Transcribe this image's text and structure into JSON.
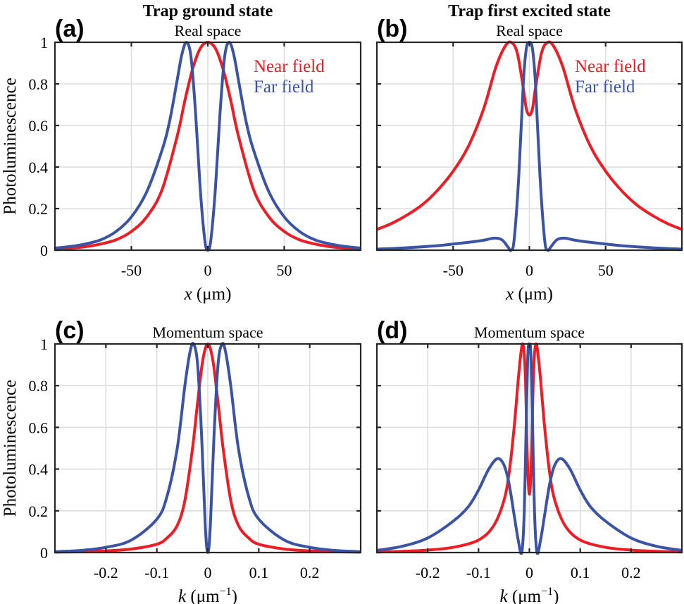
{
  "colors": {
    "near_field": "#ee1c24",
    "far_field": "#3a53a4"
  },
  "chart_data": [
    {
      "id": "a",
      "type": "line",
      "panel_label": "(a)",
      "title": "Trap ground state",
      "subtitle": "Real space",
      "xlabel_var": "x",
      "xlabel_unit": "(μm)",
      "xlabel_sup": "",
      "ylabel": "Photoluminescence",
      "xlim": [
        -100,
        100
      ],
      "ylim": [
        0,
        1
      ],
      "xticks": [
        -50,
        0,
        50
      ],
      "xtick_labels": [
        "-50",
        "0",
        "50"
      ],
      "yticks": [
        0,
        0.2,
        0.4,
        0.6,
        0.8,
        1
      ],
      "ytick_labels": [
        "0",
        "0.2",
        "0.4",
        "0.6",
        "0.8",
        "1"
      ],
      "grid": true,
      "legend": {
        "placement": "top-right",
        "entries": [
          "Near field",
          "Far field"
        ]
      },
      "series": [
        {
          "name": "Near field",
          "color_key": "near_field",
          "x": [
            -100,
            -90,
            -80,
            -70,
            -60,
            -50,
            -40,
            -30,
            -20,
            -15,
            -10,
            -5,
            0,
            5,
            10,
            15,
            20,
            30,
            40,
            50,
            60,
            70,
            80,
            90,
            100
          ],
          "y": [
            0.005,
            0.01,
            0.017,
            0.03,
            0.05,
            0.09,
            0.16,
            0.29,
            0.55,
            0.72,
            0.87,
            0.97,
            1.0,
            0.97,
            0.87,
            0.72,
            0.55,
            0.29,
            0.16,
            0.09,
            0.05,
            0.03,
            0.017,
            0.01,
            0.005
          ]
        },
        {
          "name": "Far field",
          "color_key": "far_field",
          "x": [
            -100,
            -90,
            -80,
            -70,
            -60,
            -50,
            -40,
            -30,
            -25,
            -20,
            -17,
            -14,
            -11,
            -8,
            -5,
            -2,
            0,
            2,
            5,
            8,
            11,
            14,
            17,
            20,
            25,
            30,
            40,
            50,
            60,
            70,
            80,
            90,
            100
          ],
          "y": [
            0.01,
            0.018,
            0.03,
            0.05,
            0.09,
            0.16,
            0.28,
            0.48,
            0.62,
            0.82,
            0.94,
            1.0,
            0.93,
            0.66,
            0.3,
            0.05,
            0.0,
            0.05,
            0.3,
            0.66,
            0.93,
            1.0,
            0.94,
            0.82,
            0.62,
            0.48,
            0.28,
            0.16,
            0.09,
            0.05,
            0.03,
            0.018,
            0.01
          ]
        }
      ]
    },
    {
      "id": "b",
      "type": "line",
      "panel_label": "(b)",
      "title": "Trap first excited state",
      "subtitle": "Real space",
      "xlabel_var": "x",
      "xlabel_unit": "(μm)",
      "xlabel_sup": "",
      "ylabel": "",
      "xlim": [
        -100,
        100
      ],
      "ylim": [
        0,
        1
      ],
      "xticks": [
        -50,
        0,
        50
      ],
      "xtick_labels": [
        "-50",
        "0",
        "50"
      ],
      "yticks": [
        0,
        0.2,
        0.4,
        0.6,
        0.8,
        1
      ],
      "ytick_labels": [],
      "grid": true,
      "legend": {
        "placement": "top-right",
        "entries": [
          "Near field",
          "Far field"
        ]
      },
      "series": [
        {
          "name": "Near field",
          "color_key": "near_field",
          "x": [
            -100,
            -90,
            -80,
            -70,
            -60,
            -50,
            -40,
            -30,
            -22,
            -16,
            -12,
            -8,
            -4,
            -2,
            0,
            2,
            4,
            8,
            12,
            16,
            22,
            30,
            40,
            50,
            60,
            70,
            80,
            90,
            100
          ],
          "y": [
            0.1,
            0.13,
            0.17,
            0.22,
            0.29,
            0.38,
            0.5,
            0.68,
            0.88,
            0.98,
            1.0,
            0.95,
            0.78,
            0.68,
            0.65,
            0.68,
            0.78,
            0.95,
            1.0,
            0.98,
            0.88,
            0.68,
            0.5,
            0.38,
            0.29,
            0.22,
            0.17,
            0.13,
            0.1
          ]
        },
        {
          "name": "Far field",
          "color_key": "far_field",
          "x": [
            -100,
            -80,
            -60,
            -40,
            -30,
            -23,
            -18,
            -14,
            -12,
            -10,
            -7,
            -4,
            -2,
            0,
            2,
            4,
            7,
            10,
            12,
            14,
            18,
            23,
            30,
            40,
            60,
            80,
            100
          ],
          "y": [
            0.005,
            0.012,
            0.022,
            0.038,
            0.048,
            0.058,
            0.05,
            0.015,
            0.0,
            0.05,
            0.35,
            0.8,
            0.97,
            1.0,
            0.97,
            0.8,
            0.35,
            0.05,
            0.0,
            0.015,
            0.05,
            0.058,
            0.048,
            0.038,
            0.022,
            0.012,
            0.005
          ]
        }
      ]
    },
    {
      "id": "c",
      "type": "line",
      "panel_label": "(c)",
      "title": "",
      "subtitle": "Momentum space",
      "xlabel_var": "k",
      "xlabel_unit": "(μm",
      "xlabel_sup": "−1",
      "ylabel": "Photoluminescence",
      "xlim": [
        -0.3,
        0.3
      ],
      "ylim": [
        0,
        1
      ],
      "xticks": [
        -0.2,
        -0.1,
        0,
        0.1,
        0.2
      ],
      "xtick_labels": [
        "-0.2",
        "-0.1",
        "0",
        "0.1",
        "0.2"
      ],
      "yticks": [
        0,
        0.2,
        0.4,
        0.6,
        0.8,
        1
      ],
      "ytick_labels": [
        "0",
        "0.2",
        "0.4",
        "0.6",
        "0.8",
        "1"
      ],
      "grid": true,
      "legend": null,
      "series": [
        {
          "name": "Near field",
          "color_key": "near_field",
          "x": [
            -0.3,
            -0.25,
            -0.2,
            -0.15,
            -0.1,
            -0.08,
            -0.06,
            -0.045,
            -0.03,
            -0.02,
            -0.01,
            0,
            0.01,
            0.02,
            0.03,
            0.045,
            0.06,
            0.08,
            0.1,
            0.15,
            0.2,
            0.25,
            0.3
          ],
          "y": [
            0.002,
            0.004,
            0.008,
            0.017,
            0.04,
            0.07,
            0.13,
            0.25,
            0.5,
            0.72,
            0.92,
            1.0,
            0.92,
            0.72,
            0.5,
            0.25,
            0.13,
            0.07,
            0.04,
            0.017,
            0.008,
            0.004,
            0.002
          ]
        },
        {
          "name": "Far field",
          "color_key": "far_field",
          "x": [
            -0.3,
            -0.25,
            -0.2,
            -0.15,
            -0.1,
            -0.08,
            -0.06,
            -0.045,
            -0.035,
            -0.028,
            -0.02,
            -0.012,
            -0.005,
            0,
            0.005,
            0.012,
            0.02,
            0.028,
            0.035,
            0.045,
            0.06,
            0.08,
            0.1,
            0.15,
            0.2,
            0.25,
            0.3
          ],
          "y": [
            0.004,
            0.01,
            0.025,
            0.06,
            0.16,
            0.27,
            0.5,
            0.8,
            0.96,
            1.0,
            0.9,
            0.55,
            0.13,
            0.0,
            0.13,
            0.55,
            0.9,
            1.0,
            0.96,
            0.8,
            0.5,
            0.27,
            0.16,
            0.06,
            0.025,
            0.01,
            0.004
          ]
        }
      ]
    },
    {
      "id": "d",
      "type": "line",
      "panel_label": "(d)",
      "title": "",
      "subtitle": "Momentum space",
      "xlabel_var": "k",
      "xlabel_unit": "(μm",
      "xlabel_sup": "−1",
      "ylabel": "",
      "xlim": [
        -0.3,
        0.3
      ],
      "ylim": [
        0,
        1
      ],
      "xticks": [
        -0.2,
        -0.1,
        0,
        0.1,
        0.2
      ],
      "xtick_labels": [
        "-0.2",
        "-0.1",
        "0",
        "0.1",
        "0.2"
      ],
      "yticks": [
        0,
        0.2,
        0.4,
        0.6,
        0.8,
        1
      ],
      "ytick_labels": [],
      "grid": true,
      "legend": null,
      "series": [
        {
          "name": "Near field",
          "color_key": "near_field",
          "x": [
            -0.3,
            -0.25,
            -0.2,
            -0.15,
            -0.1,
            -0.07,
            -0.05,
            -0.04,
            -0.03,
            -0.02,
            -0.013,
            -0.008,
            -0.004,
            0,
            0.004,
            0.008,
            0.013,
            0.02,
            0.03,
            0.04,
            0.05,
            0.07,
            0.1,
            0.15,
            0.2,
            0.25,
            0.3
          ],
          "y": [
            0.003,
            0.006,
            0.012,
            0.025,
            0.06,
            0.13,
            0.25,
            0.38,
            0.6,
            0.88,
            1.0,
            0.85,
            0.45,
            0.28,
            0.45,
            0.85,
            1.0,
            0.88,
            0.6,
            0.38,
            0.25,
            0.13,
            0.06,
            0.025,
            0.012,
            0.006,
            0.003
          ]
        },
        {
          "name": "Far field",
          "color_key": "far_field",
          "x": [
            -0.3,
            -0.25,
            -0.2,
            -0.15,
            -0.12,
            -0.1,
            -0.08,
            -0.063,
            -0.05,
            -0.04,
            -0.03,
            -0.022,
            -0.015,
            -0.01,
            -0.006,
            -0.003,
            0,
            0.003,
            0.006,
            0.01,
            0.015,
            0.022,
            0.03,
            0.04,
            0.05,
            0.063,
            0.08,
            0.1,
            0.12,
            0.15,
            0.2,
            0.25,
            0.3
          ],
          "y": [
            0.01,
            0.03,
            0.07,
            0.15,
            0.22,
            0.3,
            0.4,
            0.45,
            0.42,
            0.33,
            0.18,
            0.06,
            0.0,
            0.2,
            0.65,
            0.95,
            1.0,
            0.95,
            0.65,
            0.2,
            0.0,
            0.06,
            0.18,
            0.33,
            0.42,
            0.45,
            0.4,
            0.3,
            0.22,
            0.15,
            0.07,
            0.03,
            0.01
          ]
        }
      ]
    }
  ]
}
